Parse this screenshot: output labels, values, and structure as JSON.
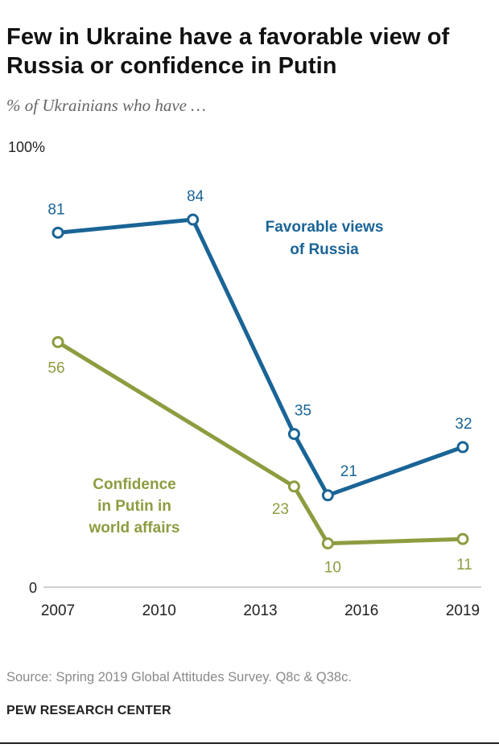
{
  "header": {
    "title": "Few in Ukraine have a favorable view of Russia or confidence in Putin",
    "subtitle": "% of Ukrainians who have …"
  },
  "footer": {
    "source": "Source: Spring 2019 Global Attitudes Survey. Q8c & Q38c.",
    "org": "PEW RESEARCH CENTER"
  },
  "chart_data": {
    "type": "line",
    "ylim": [
      0,
      100
    ],
    "y_tick_labels": [
      "100%",
      "0"
    ],
    "x_ticks": [
      2007,
      2010,
      2013,
      2016,
      2019
    ],
    "xlim": [
      2007,
      2019
    ],
    "grid": false,
    "series": [
      {
        "name": "Favorable views of Russia",
        "label_lines": [
          "Favorable views",
          "of Russia"
        ],
        "color": "#1a6496",
        "x": [
          2007,
          2011,
          2014,
          2015,
          2019
        ],
        "values": [
          81,
          84,
          35,
          21,
          32
        ],
        "value_labels": [
          "81",
          "84",
          "35",
          "21",
          "32"
        ]
      },
      {
        "name": "Confidence in Putin in world affairs",
        "label_lines": [
          "Confidence",
          "in Putin in",
          "world affairs"
        ],
        "color": "#8c9d40",
        "x": [
          2007,
          2014,
          2015,
          2019
        ],
        "values": [
          56,
          23,
          10,
          11
        ],
        "value_labels": [
          "56",
          "23",
          "10",
          "11"
        ]
      }
    ]
  }
}
